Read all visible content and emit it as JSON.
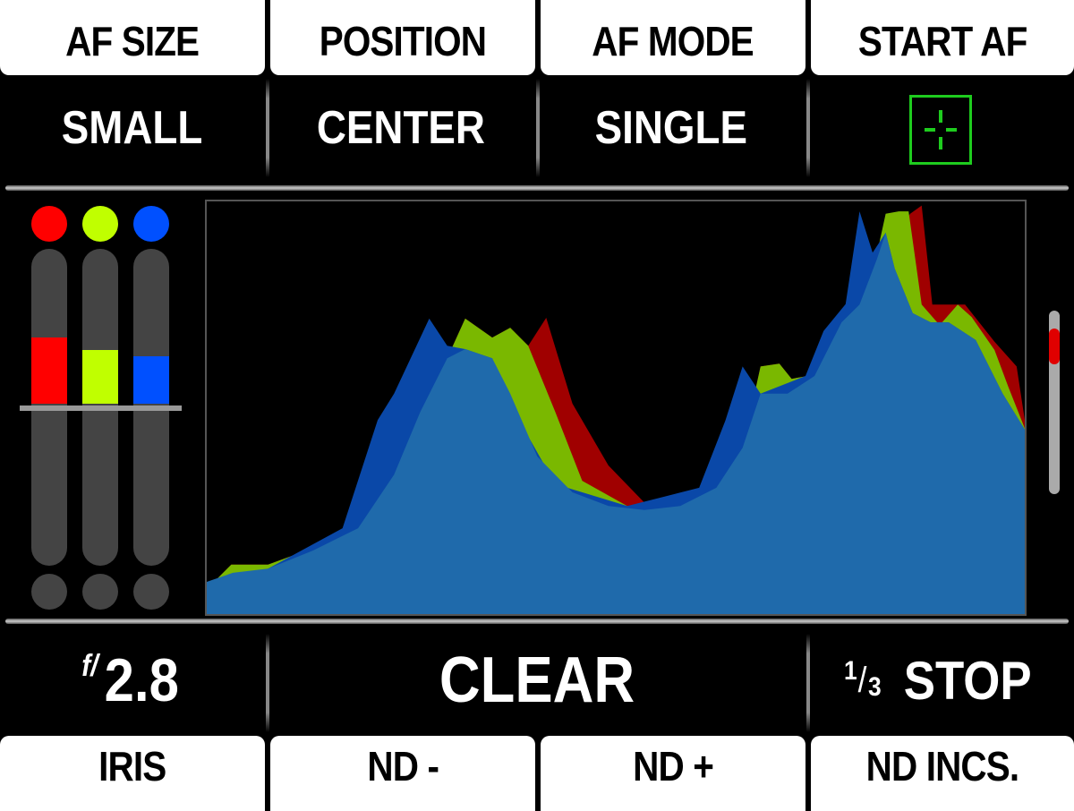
{
  "top_buttons": [
    {
      "label": "AF SIZE"
    },
    {
      "label": "POSITION"
    },
    {
      "label": "AF MODE"
    },
    {
      "label": "START AF"
    }
  ],
  "top_values": [
    {
      "value": "SMALL"
    },
    {
      "value": "CENTER"
    },
    {
      "value": "SINGLE"
    },
    {
      "icon": "af-target-icon",
      "color": "#1ecc1e"
    }
  ],
  "bottom_values": {
    "iris_prefix": "f/",
    "iris": "2.8",
    "nd": "CLEAR",
    "nd_inc_num": "1",
    "nd_inc_den": "3",
    "nd_inc_unit": "STOP"
  },
  "bottom_buttons": [
    {
      "label": "IRIS"
    },
    {
      "label": "ND -"
    },
    {
      "label": "ND +"
    },
    {
      "label": "ND INCS."
    }
  ],
  "meters": {
    "reference_percent": 51,
    "channels": [
      {
        "name": "red",
        "color": "#ff0000",
        "level_percent": 72
      },
      {
        "name": "green",
        "color": "#c0ff00",
        "level_percent": 68
      },
      {
        "name": "blue",
        "color": "#0050ff",
        "level_percent": 66
      }
    ]
  },
  "scrollbar": {
    "thumb_color": "#e00000",
    "position_percent": 12
  },
  "chart_data": {
    "type": "area",
    "xlim": [
      0,
      100
    ],
    "ylim": [
      0,
      100
    ],
    "grid": false,
    "series": [
      {
        "channel": "red",
        "color": "#a00000",
        "points": [
          [
            0,
            6
          ],
          [
            3,
            12
          ],
          [
            7.5,
            12
          ],
          [
            13,
            16
          ],
          [
            18.5,
            21
          ],
          [
            22.9,
            34
          ],
          [
            26.1,
            49
          ],
          [
            29.4,
            62
          ],
          [
            31.6,
            71.6
          ],
          [
            34.9,
            67
          ],
          [
            37.1,
            69.4
          ],
          [
            39.3,
            65
          ],
          [
            41.5,
            71.8
          ],
          [
            44.7,
            51
          ],
          [
            49.1,
            36
          ],
          [
            53.5,
            27
          ],
          [
            57.9,
            26.2
          ],
          [
            62.3,
            30.6
          ],
          [
            65.5,
            40.3
          ],
          [
            67.7,
            60
          ],
          [
            70,
            60.7
          ],
          [
            71.5,
            57
          ],
          [
            74.3,
            58
          ],
          [
            77.6,
            71
          ],
          [
            79.8,
            78
          ],
          [
            82,
            88
          ],
          [
            83,
            95
          ],
          [
            84.6,
            93
          ],
          [
            86,
            97
          ],
          [
            87.4,
            99
          ],
          [
            88.7,
            75
          ],
          [
            92.7,
            75
          ],
          [
            96.3,
            66
          ],
          [
            99,
            60
          ],
          [
            100,
            47
          ]
        ]
      },
      {
        "channel": "green",
        "color": "#7ab800",
        "points": [
          [
            0,
            6
          ],
          [
            3,
            12
          ],
          [
            7.5,
            12
          ],
          [
            13,
            16
          ],
          [
            18.5,
            21
          ],
          [
            22.9,
            34
          ],
          [
            26.1,
            49
          ],
          [
            29.4,
            62
          ],
          [
            31.6,
            71.6
          ],
          [
            34.9,
            67
          ],
          [
            37.1,
            69.4
          ],
          [
            39.3,
            65
          ],
          [
            42.6,
            49
          ],
          [
            45.9,
            32.3
          ],
          [
            51.4,
            26.2
          ],
          [
            57.9,
            26.2
          ],
          [
            62.3,
            30.6
          ],
          [
            65.5,
            40.3
          ],
          [
            67.7,
            60
          ],
          [
            70,
            60.7
          ],
          [
            71.5,
            57
          ],
          [
            74.3,
            58
          ],
          [
            77.6,
            71
          ],
          [
            79.8,
            78
          ],
          [
            82,
            88
          ],
          [
            83,
            97
          ],
          [
            84.6,
            97.6
          ],
          [
            85.8,
            97.6
          ],
          [
            87.4,
            75
          ],
          [
            89.6,
            70
          ],
          [
            91.8,
            75
          ],
          [
            93.5,
            72
          ],
          [
            96.3,
            64
          ],
          [
            98,
            55
          ],
          [
            100,
            45
          ]
        ]
      },
      {
        "channel": "blue",
        "color": "#0a48a8",
        "points": [
          [
            0,
            5.6
          ],
          [
            7.5,
            11
          ],
          [
            16.6,
            20.8
          ],
          [
            20.9,
            47
          ],
          [
            22.9,
            53.4
          ],
          [
            27.2,
            71.6
          ],
          [
            29.4,
            65
          ],
          [
            31.6,
            64.2
          ],
          [
            34.9,
            62
          ],
          [
            38.2,
            46.9
          ],
          [
            42.6,
            31.5
          ],
          [
            51.4,
            26.2
          ],
          [
            55.8,
            28.4
          ],
          [
            60.2,
            30.6
          ],
          [
            63.4,
            46.9
          ],
          [
            65.5,
            60
          ],
          [
            67.7,
            53.4
          ],
          [
            73.2,
            57.7
          ],
          [
            75.4,
            68.6
          ],
          [
            78.1,
            75.1
          ],
          [
            79.8,
            97.6
          ],
          [
            81.4,
            87.6
          ],
          [
            83,
            92.4
          ],
          [
            84.1,
            83.7
          ],
          [
            86.3,
            72.9
          ],
          [
            88.5,
            70.7
          ],
          [
            90.7,
            70.7
          ],
          [
            94,
            66.4
          ],
          [
            97.3,
            53.4
          ],
          [
            100,
            44.7
          ]
        ]
      },
      {
        "channel": "luma",
        "color": "#1f6aab",
        "points": [
          [
            0,
            7.8
          ],
          [
            3.2,
            10
          ],
          [
            7.5,
            11
          ],
          [
            13,
            15.4
          ],
          [
            18.5,
            20.8
          ],
          [
            22.9,
            33.8
          ],
          [
            26.1,
            49
          ],
          [
            29.4,
            62
          ],
          [
            31.6,
            64.2
          ],
          [
            34.9,
            62
          ],
          [
            37.1,
            53.4
          ],
          [
            40.4,
            38.2
          ],
          [
            44.7,
            29.5
          ],
          [
            49.1,
            26.2
          ],
          [
            53.5,
            25.2
          ],
          [
            57.9,
            26.2
          ],
          [
            62.3,
            30.6
          ],
          [
            65.5,
            40.3
          ],
          [
            67.7,
            53.4
          ],
          [
            71,
            53.4
          ],
          [
            74.3,
            57.7
          ],
          [
            77.6,
            70.7
          ],
          [
            79.8,
            75
          ],
          [
            81.9,
            85.9
          ],
          [
            83,
            92.4
          ],
          [
            84.1,
            83.7
          ],
          [
            86.3,
            72.9
          ],
          [
            88.5,
            70.7
          ],
          [
            90.7,
            70.7
          ],
          [
            94,
            66.4
          ],
          [
            97.3,
            53.4
          ],
          [
            100,
            44.7
          ]
        ]
      }
    ]
  }
}
